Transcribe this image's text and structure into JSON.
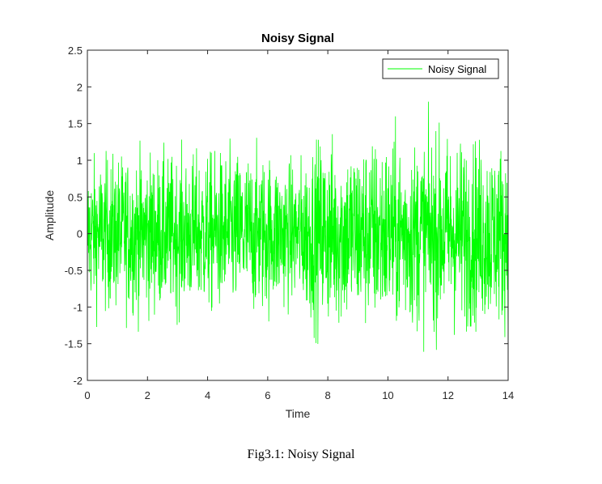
{
  "chart_data": {
    "type": "line",
    "title": "Noisy Signal",
    "xlabel": "Time",
    "ylabel": "Amplitude",
    "xlim": [
      0,
      14
    ],
    "ylim": [
      -2,
      2.5
    ],
    "xticks": [
      0,
      2,
      4,
      6,
      8,
      10,
      12,
      14
    ],
    "yticks": [
      -2,
      -1.5,
      -1,
      -0.5,
      0,
      0.5,
      1,
      1.5,
      2,
      2.5
    ],
    "grid": false,
    "legend_position": "top-right",
    "series": [
      {
        "name": "Noisy Signal",
        "color": "#00ff00",
        "description_range": "dense noise; envelope approx ±1.0 for t<7, approx ±1.3 for t>7",
        "x": [
          0,
          1,
          2,
          3,
          4,
          5,
          6,
          7,
          7.5,
          8,
          9,
          10,
          11,
          12,
          13,
          14
        ],
        "envelope_upper": [
          1.05,
          1.1,
          1.15,
          1.1,
          1.15,
          1.15,
          1.15,
          1.0,
          1.3,
          1.35,
          1.3,
          1.35,
          1.35,
          1.4,
          1.35,
          1.3
        ],
        "envelope_lower": [
          -1.05,
          -1.15,
          -1.15,
          -1.1,
          -1.15,
          -1.2,
          -1.15,
          -1.0,
          -1.35,
          -1.35,
          -1.4,
          -1.4,
          -1.35,
          -1.4,
          -1.35,
          -1.3
        ],
        "peak_max": 2.0,
        "peak_min": -1.9
      }
    ]
  },
  "caption": "Fig3.1: Noisy Signal"
}
